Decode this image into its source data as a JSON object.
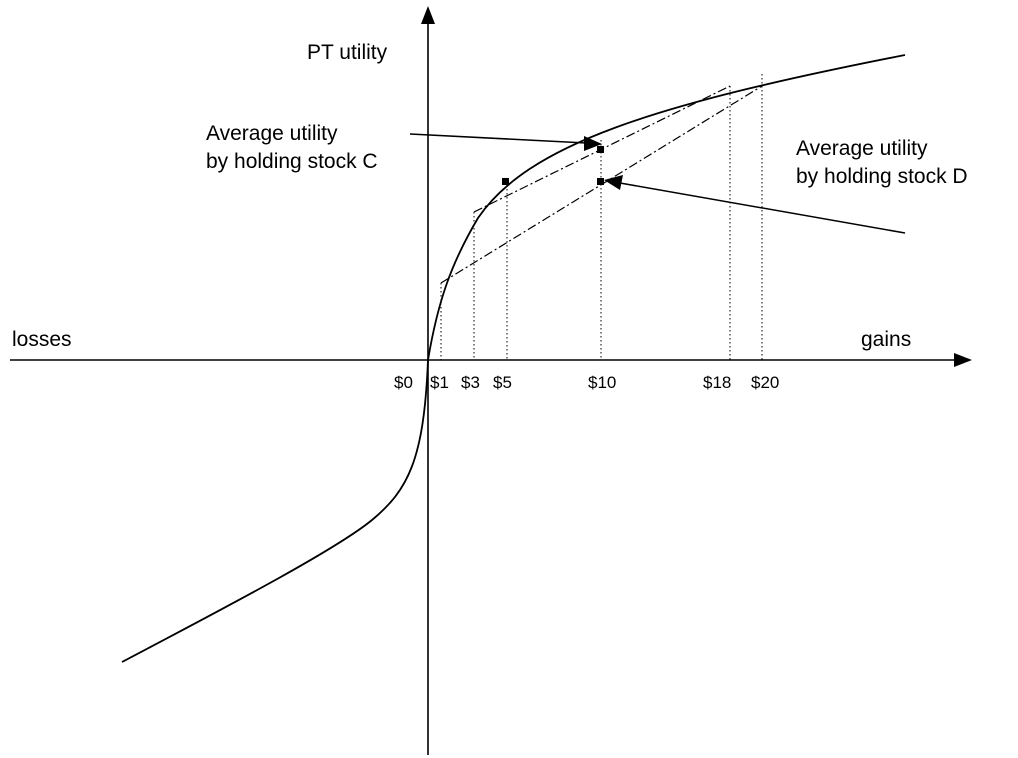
{
  "axes": {
    "y_label": "PT utility",
    "x_left_label": "losses",
    "x_right_label": "gains"
  },
  "ticks": {
    "t0": "$0",
    "t1": "$1",
    "t3": "$3",
    "t5": "$5",
    "t10": "$10",
    "t18": "$18",
    "t20": "$20"
  },
  "annotations": {
    "stock_c": {
      "line1": "Average utility",
      "line2": "by holding stock C"
    },
    "stock_d": {
      "line1": "Average utility",
      "line2": "by holding stock D"
    }
  }
}
